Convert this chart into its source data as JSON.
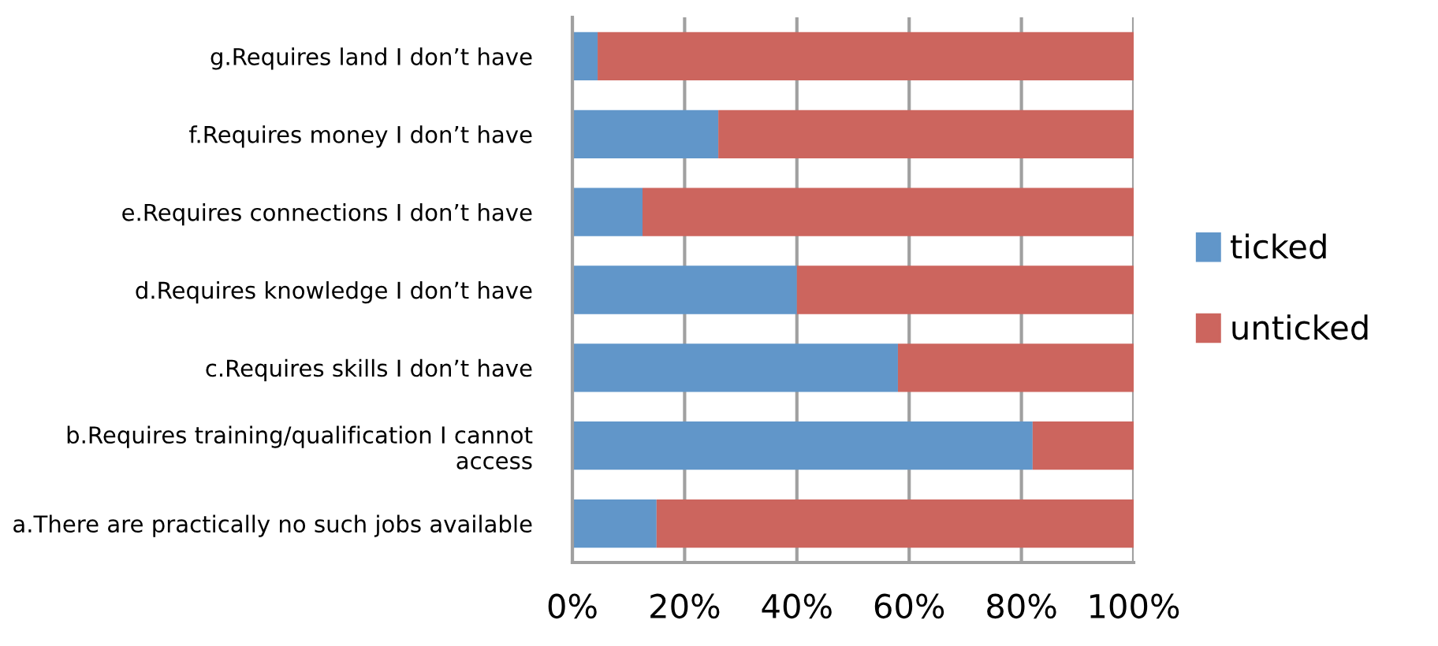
{
  "chart_data": {
    "type": "bar",
    "orientation": "horizontal",
    "stacked": true,
    "categories": [
      "g.Requires land I don’t have",
      "f.Requires money I don’t have",
      "e.Requires connections I don’t have",
      "d.Requires knowledge I don’t have",
      "c.Requires skills I don’t have",
      "b.Requires training/qualification I cannot\naccess",
      "a.There are practically no such jobs available"
    ],
    "series": [
      {
        "name": "ticked",
        "color": "#6196c9",
        "values": [
          4.5,
          26,
          12.5,
          40,
          58,
          82,
          15
        ]
      },
      {
        "name": "unticked",
        "color": "#cc655e",
        "values": [
          95.5,
          74,
          87.5,
          60,
          42,
          18,
          85
        ]
      }
    ],
    "xlim": [
      0,
      100
    ],
    "xticks": [
      {
        "value": 0,
        "label": "0%"
      },
      {
        "value": 20,
        "label": "20%"
      },
      {
        "value": 40,
        "label": "40%"
      },
      {
        "value": 60,
        "label": "60%"
      },
      {
        "value": 80,
        "label": "80%"
      },
      {
        "value": 100,
        "label": "100%"
      }
    ],
    "grid": "x",
    "legend": "right"
  }
}
